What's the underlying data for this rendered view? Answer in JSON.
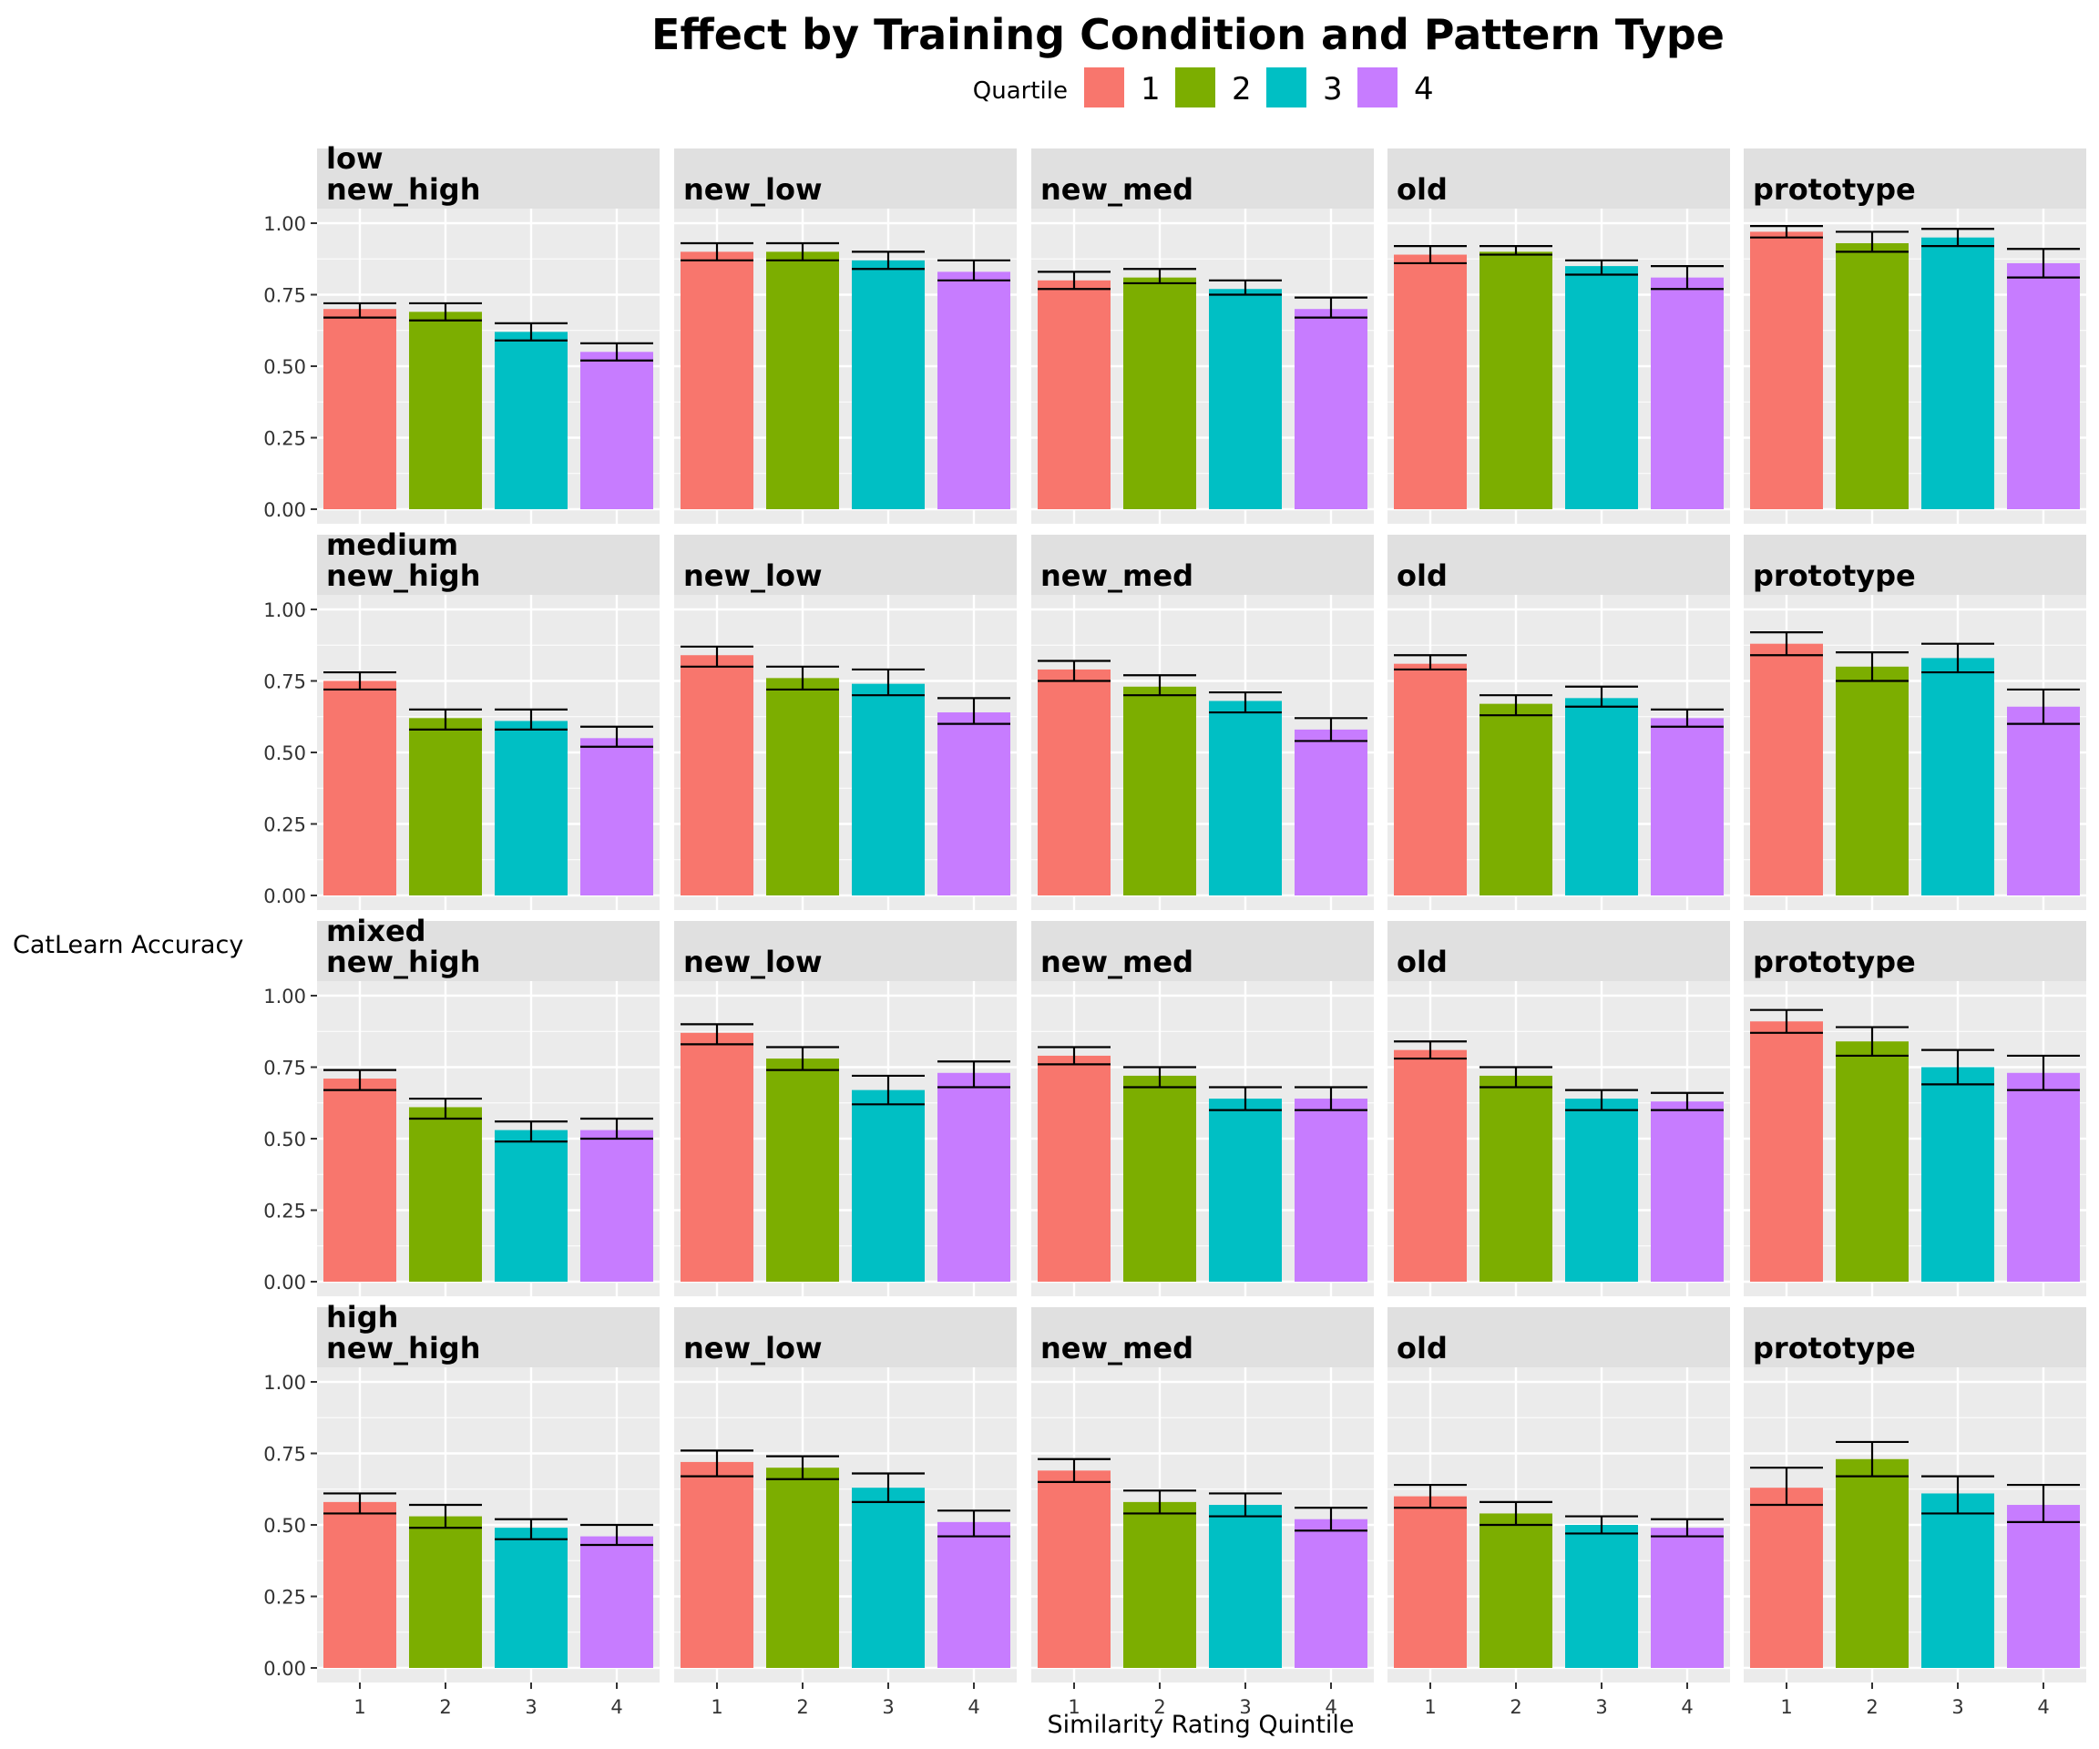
{
  "chart_data": {
    "type": "bar",
    "title": "Effect by Training Condition and Pattern Type",
    "xlabel": "Similarity Rating Quintile",
    "ylabel": "CatLearn Accuracy",
    "ylim": [
      0,
      1
    ],
    "yticks": [
      "0.00",
      "0.25",
      "0.50",
      "0.75",
      "1.00"
    ],
    "categories": [
      "1",
      "2",
      "3",
      "4"
    ],
    "legend": {
      "title": "Quartile",
      "position": "top",
      "entries": [
        "1",
        "2",
        "3",
        "4"
      ],
      "colors": [
        "#F8766D",
        "#7CAE00",
        "#00BFC4",
        "#C77CFF"
      ]
    },
    "grid": true,
    "rows": [
      "low",
      "medium",
      "mixed",
      "high"
    ],
    "columns": [
      "new_high",
      "new_low",
      "new_med",
      "old",
      "prototype"
    ],
    "panels": [
      [
        {
          "values": [
            0.7,
            0.69,
            0.62,
            0.55
          ],
          "err_low": [
            0.67,
            0.66,
            0.59,
            0.52
          ],
          "err_high": [
            0.72,
            0.72,
            0.65,
            0.58
          ]
        },
        {
          "values": [
            0.9,
            0.9,
            0.87,
            0.83
          ],
          "err_low": [
            0.87,
            0.87,
            0.84,
            0.8
          ],
          "err_high": [
            0.93,
            0.93,
            0.9,
            0.87
          ]
        },
        {
          "values": [
            0.8,
            0.81,
            0.77,
            0.7
          ],
          "err_low": [
            0.77,
            0.79,
            0.75,
            0.67
          ],
          "err_high": [
            0.83,
            0.84,
            0.8,
            0.74
          ]
        },
        {
          "values": [
            0.89,
            0.9,
            0.85,
            0.81
          ],
          "err_low": [
            0.86,
            0.89,
            0.82,
            0.77
          ],
          "err_high": [
            0.92,
            0.92,
            0.87,
            0.85
          ]
        },
        {
          "values": [
            0.97,
            0.93,
            0.95,
            0.86
          ],
          "err_low": [
            0.95,
            0.9,
            0.92,
            0.81
          ],
          "err_high": [
            0.99,
            0.97,
            0.98,
            0.91
          ]
        }
      ],
      [
        {
          "values": [
            0.75,
            0.62,
            0.61,
            0.55
          ],
          "err_low": [
            0.72,
            0.58,
            0.58,
            0.52
          ],
          "err_high": [
            0.78,
            0.65,
            0.65,
            0.59
          ]
        },
        {
          "values": [
            0.84,
            0.76,
            0.74,
            0.64
          ],
          "err_low": [
            0.8,
            0.72,
            0.7,
            0.6
          ],
          "err_high": [
            0.87,
            0.8,
            0.79,
            0.69
          ]
        },
        {
          "values": [
            0.79,
            0.73,
            0.68,
            0.58
          ],
          "err_low": [
            0.75,
            0.7,
            0.64,
            0.54
          ],
          "err_high": [
            0.82,
            0.77,
            0.71,
            0.62
          ]
        },
        {
          "values": [
            0.81,
            0.67,
            0.69,
            0.62
          ],
          "err_low": [
            0.79,
            0.63,
            0.66,
            0.59
          ],
          "err_high": [
            0.84,
            0.7,
            0.73,
            0.65
          ]
        },
        {
          "values": [
            0.88,
            0.8,
            0.83,
            0.66
          ],
          "err_low": [
            0.84,
            0.75,
            0.78,
            0.6
          ],
          "err_high": [
            0.92,
            0.85,
            0.88,
            0.72
          ]
        }
      ],
      [
        {
          "values": [
            0.71,
            0.61,
            0.53,
            0.53
          ],
          "err_low": [
            0.67,
            0.57,
            0.49,
            0.5
          ],
          "err_high": [
            0.74,
            0.64,
            0.56,
            0.57
          ]
        },
        {
          "values": [
            0.87,
            0.78,
            0.67,
            0.73
          ],
          "err_low": [
            0.83,
            0.74,
            0.62,
            0.68
          ],
          "err_high": [
            0.9,
            0.82,
            0.72,
            0.77
          ]
        },
        {
          "values": [
            0.79,
            0.72,
            0.64,
            0.64
          ],
          "err_low": [
            0.76,
            0.68,
            0.6,
            0.6
          ],
          "err_high": [
            0.82,
            0.75,
            0.68,
            0.68
          ]
        },
        {
          "values": [
            0.81,
            0.72,
            0.64,
            0.63
          ],
          "err_low": [
            0.78,
            0.68,
            0.6,
            0.6
          ],
          "err_high": [
            0.84,
            0.75,
            0.67,
            0.66
          ]
        },
        {
          "values": [
            0.91,
            0.84,
            0.75,
            0.73
          ],
          "err_low": [
            0.87,
            0.79,
            0.69,
            0.67
          ],
          "err_high": [
            0.95,
            0.89,
            0.81,
            0.79
          ]
        }
      ],
      [
        {
          "values": [
            0.58,
            0.53,
            0.49,
            0.46
          ],
          "err_low": [
            0.54,
            0.49,
            0.45,
            0.43
          ],
          "err_high": [
            0.61,
            0.57,
            0.52,
            0.5
          ]
        },
        {
          "values": [
            0.72,
            0.7,
            0.63,
            0.51
          ],
          "err_low": [
            0.67,
            0.66,
            0.58,
            0.46
          ],
          "err_high": [
            0.76,
            0.74,
            0.68,
            0.55
          ]
        },
        {
          "values": [
            0.69,
            0.58,
            0.57,
            0.52
          ],
          "err_low": [
            0.65,
            0.54,
            0.53,
            0.48
          ],
          "err_high": [
            0.73,
            0.62,
            0.61,
            0.56
          ]
        },
        {
          "values": [
            0.6,
            0.54,
            0.5,
            0.49
          ],
          "err_low": [
            0.56,
            0.5,
            0.47,
            0.46
          ],
          "err_high": [
            0.64,
            0.58,
            0.53,
            0.52
          ]
        },
        {
          "values": [
            0.63,
            0.73,
            0.61,
            0.57
          ],
          "err_low": [
            0.57,
            0.67,
            0.54,
            0.51
          ],
          "err_high": [
            0.7,
            0.79,
            0.67,
            0.64
          ]
        }
      ]
    ]
  }
}
